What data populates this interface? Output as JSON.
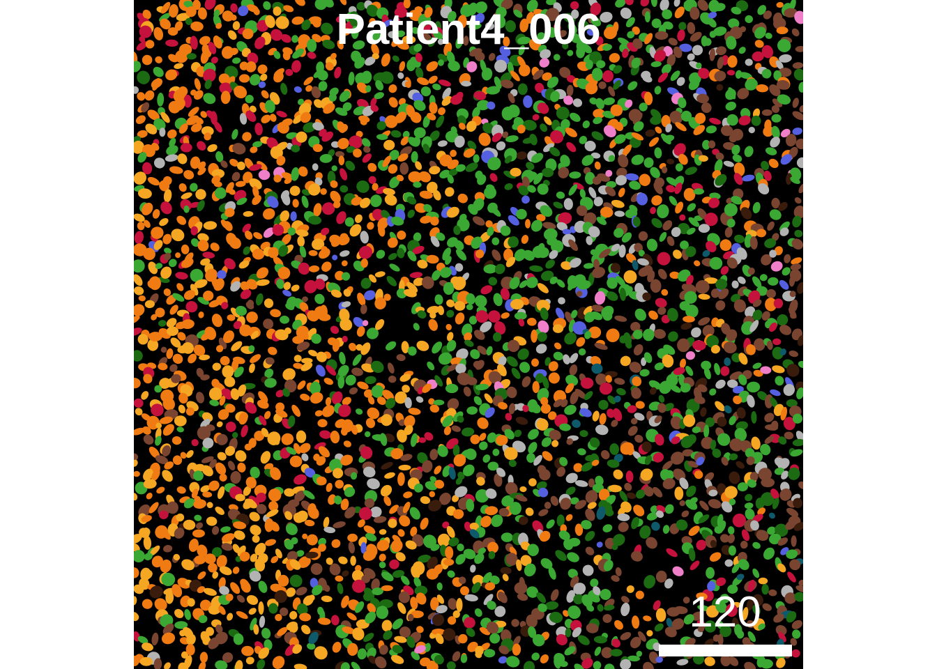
{
  "image": {
    "title": "Patient4_006",
    "scale_bar_label": "120",
    "background_color": "#000000",
    "cell_palette": {
      "orange": "#f07b12",
      "light_orange": "#f5a623",
      "green": "#3aa832",
      "dark_green": "#1c6b12",
      "crimson": "#c4123d",
      "brown": "#7a4530",
      "dark_brown": "#3a1c0c",
      "gray": "#b3b3b3",
      "blue": "#5560e0",
      "pink": "#ee7fc8",
      "teal": "#0f5a6a"
    }
  }
}
